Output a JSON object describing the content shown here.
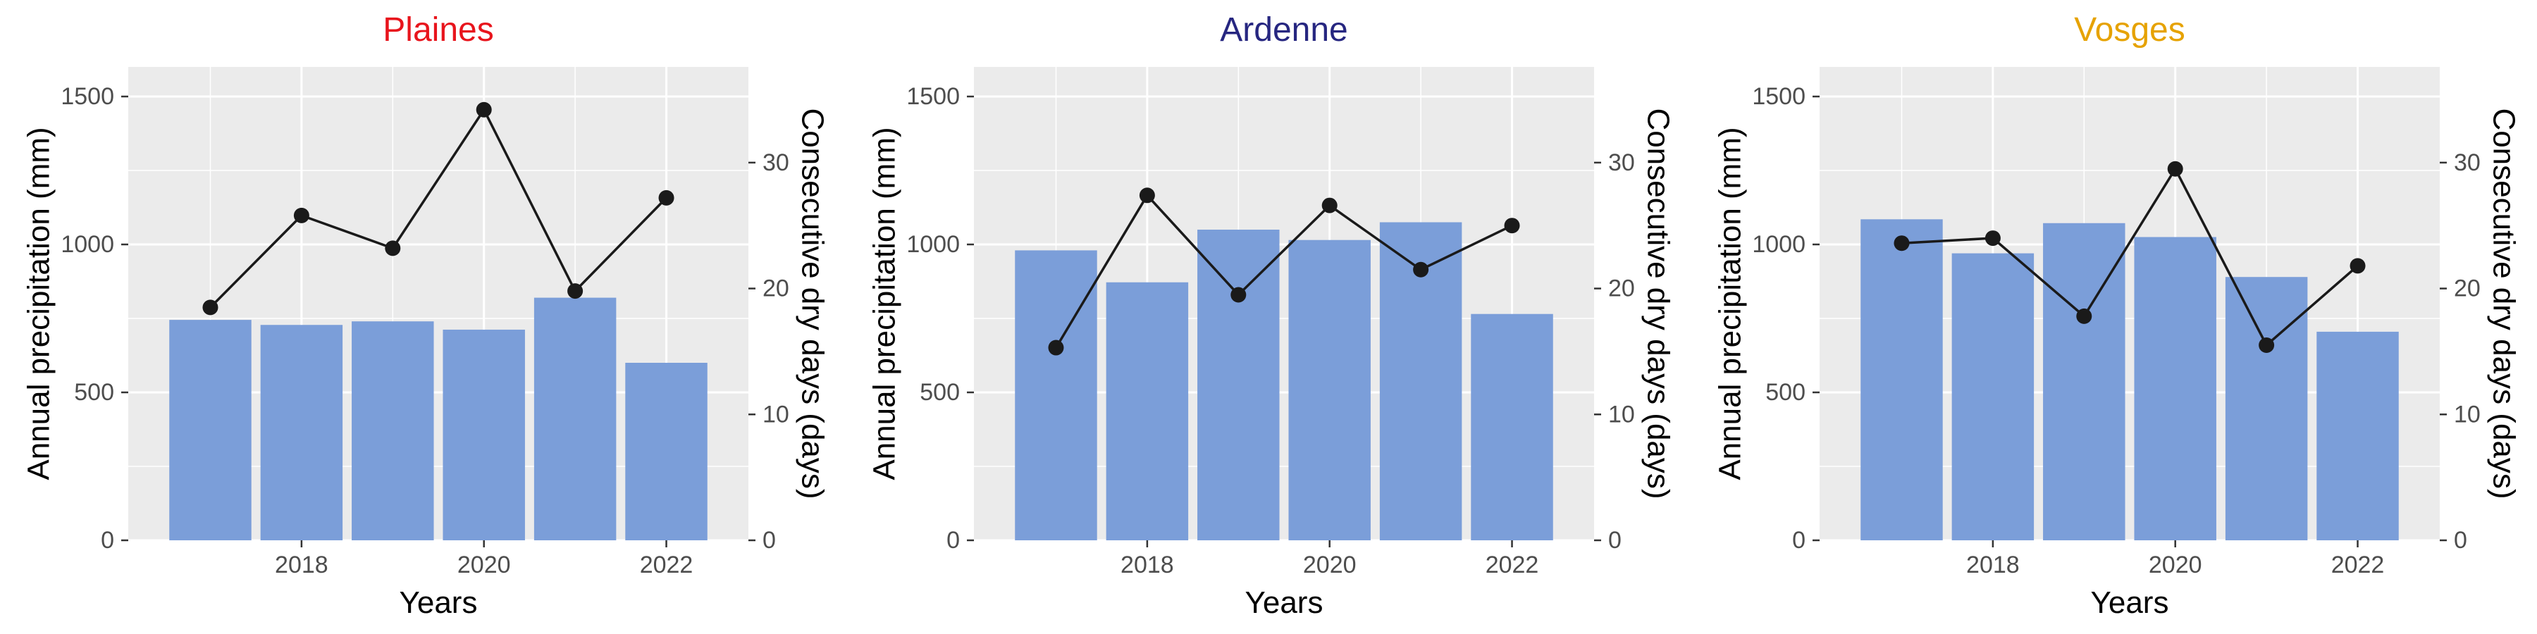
{
  "colors": {
    "panel_background": "#ebebeb",
    "grid_major": "#ffffff",
    "bar_fill": "#7b9ed9",
    "line_color": "#1a1a1a",
    "point_color": "#1a1a1a",
    "tick_color": "#333333"
  },
  "chart_data": [
    {
      "type": "bar",
      "title": "Plaines",
      "title_color": "#e8141c",
      "xlabel": "Years",
      "ylabel": "Annual precipitation (mm)",
      "y2label": "Consecutive dry days (days)",
      "x": [
        2017,
        2018,
        2019,
        2020,
        2021,
        2022
      ],
      "x_ticks": [
        2018,
        2020,
        2022
      ],
      "ylim": [
        0,
        1600
      ],
      "y_ticks": [
        0,
        500,
        1000,
        1500
      ],
      "y2lim": [
        0,
        37.6
      ],
      "y2_ticks": [
        0,
        10,
        20,
        30
      ],
      "grid": true,
      "series": [
        {
          "kind": "bar",
          "axis": "left",
          "values": [
            745,
            728,
            740,
            712,
            820,
            600
          ]
        },
        {
          "kind": "line",
          "axis": "right",
          "values": [
            18.5,
            25.8,
            23.2,
            34.2,
            19.8,
            27.2
          ]
        }
      ]
    },
    {
      "type": "bar",
      "title": "Ardenne",
      "title_color": "#262680",
      "xlabel": "Years",
      "ylabel": "Annual precipitation (mm)",
      "y2label": "Consecutive dry days (days)",
      "x": [
        2017,
        2018,
        2019,
        2020,
        2021,
        2022
      ],
      "x_ticks": [
        2018,
        2020,
        2022
      ],
      "ylim": [
        0,
        1600
      ],
      "y_ticks": [
        0,
        500,
        1000,
        1500
      ],
      "y2lim": [
        0,
        37.6
      ],
      "y2_ticks": [
        0,
        10,
        20,
        30
      ],
      "grid": true,
      "series": [
        {
          "kind": "bar",
          "axis": "left",
          "values": [
            980,
            872,
            1050,
            1015,
            1075,
            765
          ]
        },
        {
          "kind": "line",
          "axis": "right",
          "values": [
            15.3,
            27.4,
            19.5,
            26.6,
            21.5,
            25.0
          ]
        }
      ]
    },
    {
      "type": "bar",
      "title": "Vosges",
      "title_color": "#e6a200",
      "xlabel": "Years",
      "ylabel": "Annual precipitation (mm)",
      "y2label": "Consecutive dry days (days)",
      "x": [
        2017,
        2018,
        2019,
        2020,
        2021,
        2022
      ],
      "x_ticks": [
        2018,
        2020,
        2022
      ],
      "ylim": [
        0,
        1600
      ],
      "y_ticks": [
        0,
        500,
        1000,
        1500
      ],
      "y2lim": [
        0,
        37.6
      ],
      "y2_ticks": [
        0,
        10,
        20,
        30
      ],
      "grid": true,
      "series": [
        {
          "kind": "bar",
          "axis": "left",
          "values": [
            1085,
            970,
            1072,
            1025,
            890,
            705
          ]
        },
        {
          "kind": "line",
          "axis": "right",
          "values": [
            23.6,
            24.0,
            17.8,
            29.5,
            15.5,
            21.8
          ]
        }
      ]
    }
  ]
}
